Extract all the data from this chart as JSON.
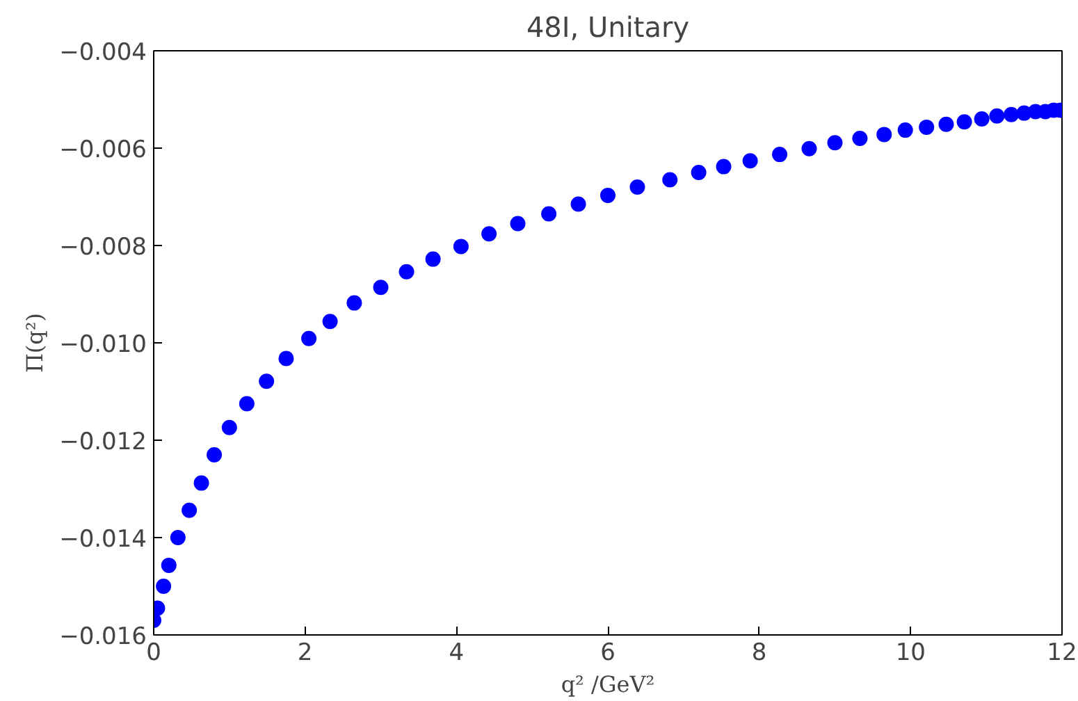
{
  "chart_data": {
    "type": "scatter",
    "title": "48I, Unitary",
    "xlabel": "q² /GeV²",
    "ylabel": "Π(q²)",
    "marker": "circle",
    "grid": false,
    "xlim": [
      0,
      12
    ],
    "ylim": [
      -0.016,
      -0.004
    ],
    "xticks": [
      0,
      2,
      4,
      6,
      8,
      10,
      12
    ],
    "yticks": [
      {
        "value": -0.016,
        "label": "−0.016"
      },
      {
        "value": -0.014,
        "label": "−0.014"
      },
      {
        "value": -0.012,
        "label": "−0.012"
      },
      {
        "value": -0.01,
        "label": "−0.010"
      },
      {
        "value": -0.008,
        "label": "−0.008"
      },
      {
        "value": -0.006,
        "label": "−0.006"
      },
      {
        "value": -0.004,
        "label": "−0.004"
      }
    ],
    "series": [
      {
        "color": "#0000ff",
        "x": [
          0,
          0.05,
          0.13,
          0.2,
          0.32,
          0.47,
          0.63,
          0.8,
          1.0,
          1.23,
          1.49,
          1.75,
          2.05,
          2.33,
          2.65,
          3.0,
          3.34,
          3.69,
          4.06,
          4.43,
          4.81,
          5.22,
          5.61,
          6.0,
          6.39,
          6.82,
          7.2,
          7.53,
          7.88,
          8.27,
          8.66,
          9.0,
          9.33,
          9.65,
          9.93,
          10.21,
          10.47,
          10.71,
          10.94,
          11.14,
          11.33,
          11.5,
          11.65,
          11.78,
          11.89,
          11.98
        ],
        "values": [
          -0.0157,
          -0.01545,
          -0.015,
          -0.01457,
          -0.014,
          -0.01344,
          -0.01288,
          -0.0123,
          -0.01174,
          -0.01125,
          -0.01079,
          -0.01032,
          -0.00991,
          -0.00956,
          -0.00918,
          -0.00886,
          -0.00854,
          -0.00828,
          -0.00802,
          -0.00776,
          -0.00755,
          -0.00735,
          -0.00715,
          -0.00697,
          -0.0068,
          -0.00665,
          -0.0065,
          -0.00638,
          -0.00626,
          -0.00613,
          -0.00601,
          -0.00589,
          -0.0058,
          -0.00572,
          -0.00563,
          -0.00557,
          -0.00551,
          -0.00546,
          -0.0054,
          -0.00534,
          -0.00531,
          -0.00528,
          -0.00525,
          -0.00525,
          -0.00522,
          -0.00522
        ]
      }
    ]
  }
}
